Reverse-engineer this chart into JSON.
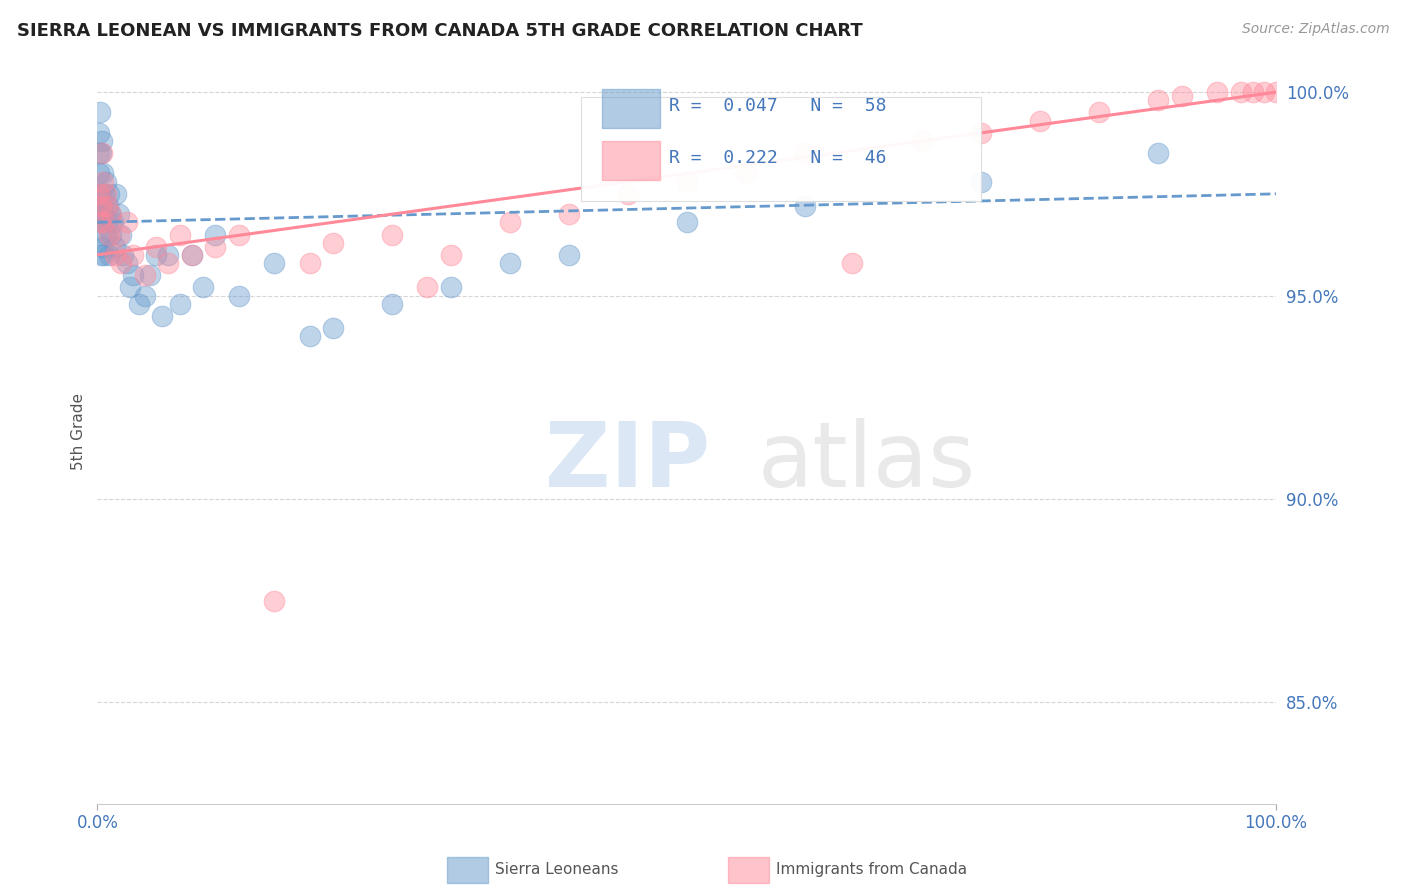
{
  "title": "SIERRA LEONEAN VS IMMIGRANTS FROM CANADA 5TH GRADE CORRELATION CHART",
  "source": "Source: ZipAtlas.com",
  "ylabel": "5th Grade",
  "xlim": [
    0.0,
    1.0
  ],
  "ylim": [
    0.825,
    1.008
  ],
  "yticks": [
    0.85,
    0.9,
    0.95,
    1.0
  ],
  "ytick_labels": [
    "85.0%",
    "90.0%",
    "95.0%",
    "100.0%"
  ],
  "xticks": [
    0.0,
    1.0
  ],
  "xtick_labels": [
    "0.0%",
    "100.0%"
  ],
  "blue_color": "#6699cc",
  "pink_color": "#ff8899",
  "title_color": "#222222",
  "axis_label_color": "#555555",
  "tick_color": "#4477bb",
  "grid_color": "#cccccc",
  "R_blue": 0.047,
  "N_blue": 58,
  "R_pink": 0.222,
  "N_pink": 46,
  "blue_x": [
    0.001,
    0.001,
    0.001,
    0.001,
    0.001,
    0.002,
    0.002,
    0.002,
    0.002,
    0.003,
    0.003,
    0.003,
    0.004,
    0.004,
    0.005,
    0.005,
    0.005,
    0.006,
    0.006,
    0.007,
    0.007,
    0.008,
    0.009,
    0.01,
    0.01,
    0.011,
    0.012,
    0.013,
    0.015,
    0.016,
    0.018,
    0.02,
    0.022,
    0.025,
    0.028,
    0.03,
    0.035,
    0.04,
    0.045,
    0.05,
    0.055,
    0.06,
    0.07,
    0.08,
    0.09,
    0.1,
    0.12,
    0.15,
    0.18,
    0.2,
    0.25,
    0.3,
    0.35,
    0.4,
    0.5,
    0.6,
    0.75,
    0.9
  ],
  "blue_y": [
    0.97,
    0.975,
    0.98,
    0.985,
    0.99,
    0.965,
    0.97,
    0.975,
    0.995,
    0.96,
    0.968,
    0.985,
    0.972,
    0.988,
    0.962,
    0.97,
    0.98,
    0.96,
    0.975,
    0.965,
    0.978,
    0.968,
    0.972,
    0.96,
    0.975,
    0.97,
    0.965,
    0.968,
    0.962,
    0.975,
    0.97,
    0.965,
    0.96,
    0.958,
    0.952,
    0.955,
    0.948,
    0.95,
    0.955,
    0.96,
    0.945,
    0.96,
    0.948,
    0.96,
    0.952,
    0.965,
    0.95,
    0.958,
    0.94,
    0.942,
    0.948,
    0.952,
    0.958,
    0.96,
    0.968,
    0.972,
    0.978,
    0.985
  ],
  "pink_x": [
    0.001,
    0.002,
    0.003,
    0.004,
    0.005,
    0.006,
    0.007,
    0.008,
    0.01,
    0.012,
    0.015,
    0.018,
    0.02,
    0.025,
    0.03,
    0.04,
    0.05,
    0.06,
    0.07,
    0.08,
    0.1,
    0.12,
    0.15,
    0.18,
    0.2,
    0.25,
    0.28,
    0.3,
    0.35,
    0.4,
    0.45,
    0.5,
    0.55,
    0.6,
    0.64,
    0.7,
    0.75,
    0.8,
    0.85,
    0.9,
    0.92,
    0.95,
    0.97,
    0.98,
    0.99,
    1.0
  ],
  "pink_y": [
    0.975,
    0.968,
    0.972,
    0.985,
    0.978,
    0.968,
    0.975,
    0.972,
    0.965,
    0.97,
    0.96,
    0.965,
    0.958,
    0.968,
    0.96,
    0.955,
    0.962,
    0.958,
    0.965,
    0.96,
    0.962,
    0.965,
    0.875,
    0.958,
    0.963,
    0.965,
    0.952,
    0.96,
    0.968,
    0.97,
    0.975,
    0.978,
    0.98,
    0.985,
    0.958,
    0.988,
    0.99,
    0.993,
    0.995,
    0.998,
    0.999,
    1.0,
    1.0,
    1.0,
    1.0,
    1.0
  ]
}
